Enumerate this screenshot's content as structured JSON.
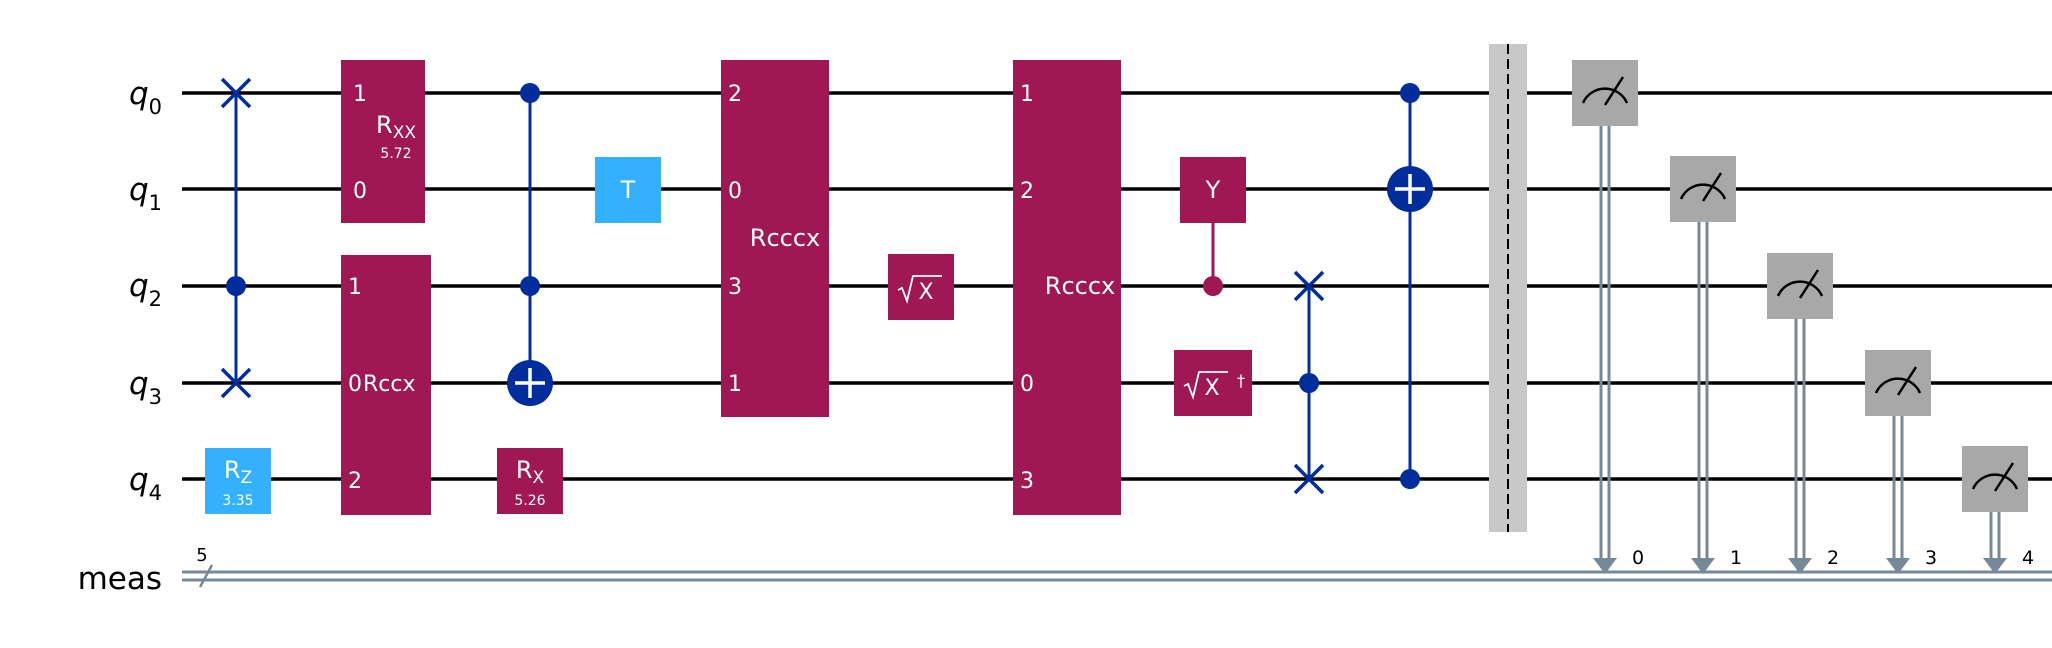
{
  "qubits": [
    "q",
    "q",
    "q",
    "q",
    "q"
  ],
  "qubit_indices": [
    "0",
    "1",
    "2",
    "3",
    "4"
  ],
  "classical_register": {
    "name": "meas",
    "size": "5"
  },
  "gates": {
    "rxx": {
      "name": "R",
      "sub": "XX",
      "param": "5.72",
      "top_port": "1",
      "bottom_port": "0"
    },
    "t": {
      "name": "T"
    },
    "rz": {
      "name": "R",
      "sub": "Z",
      "param": "3.35"
    },
    "rccx": {
      "name": "Rccx",
      "ports": [
        "1",
        "0",
        "2"
      ]
    },
    "rx": {
      "name": "R",
      "sub": "X",
      "param": "5.26"
    },
    "rcccx1": {
      "name": "Rcccx",
      "ports": [
        "2",
        "0",
        "3",
        "1"
      ]
    },
    "sx": {
      "name": "X"
    },
    "rcccx2": {
      "name": "Rcccx",
      "ports": [
        "1",
        "2",
        "0",
        "3"
      ]
    },
    "y": {
      "name": "Y"
    },
    "sxdg": {
      "name": "X",
      "dagger": "†"
    }
  },
  "measure_bits": [
    "0",
    "1",
    "2",
    "3",
    "4"
  ],
  "colors": {
    "wire": "#000000",
    "classical": "#778899",
    "multi_qubit_gate": "#9f1853",
    "single_qubit_gate": "#33b1ff",
    "control": "#002d9c",
    "barrier": "#c8c8c8",
    "measure": "#a8a8a8"
  }
}
